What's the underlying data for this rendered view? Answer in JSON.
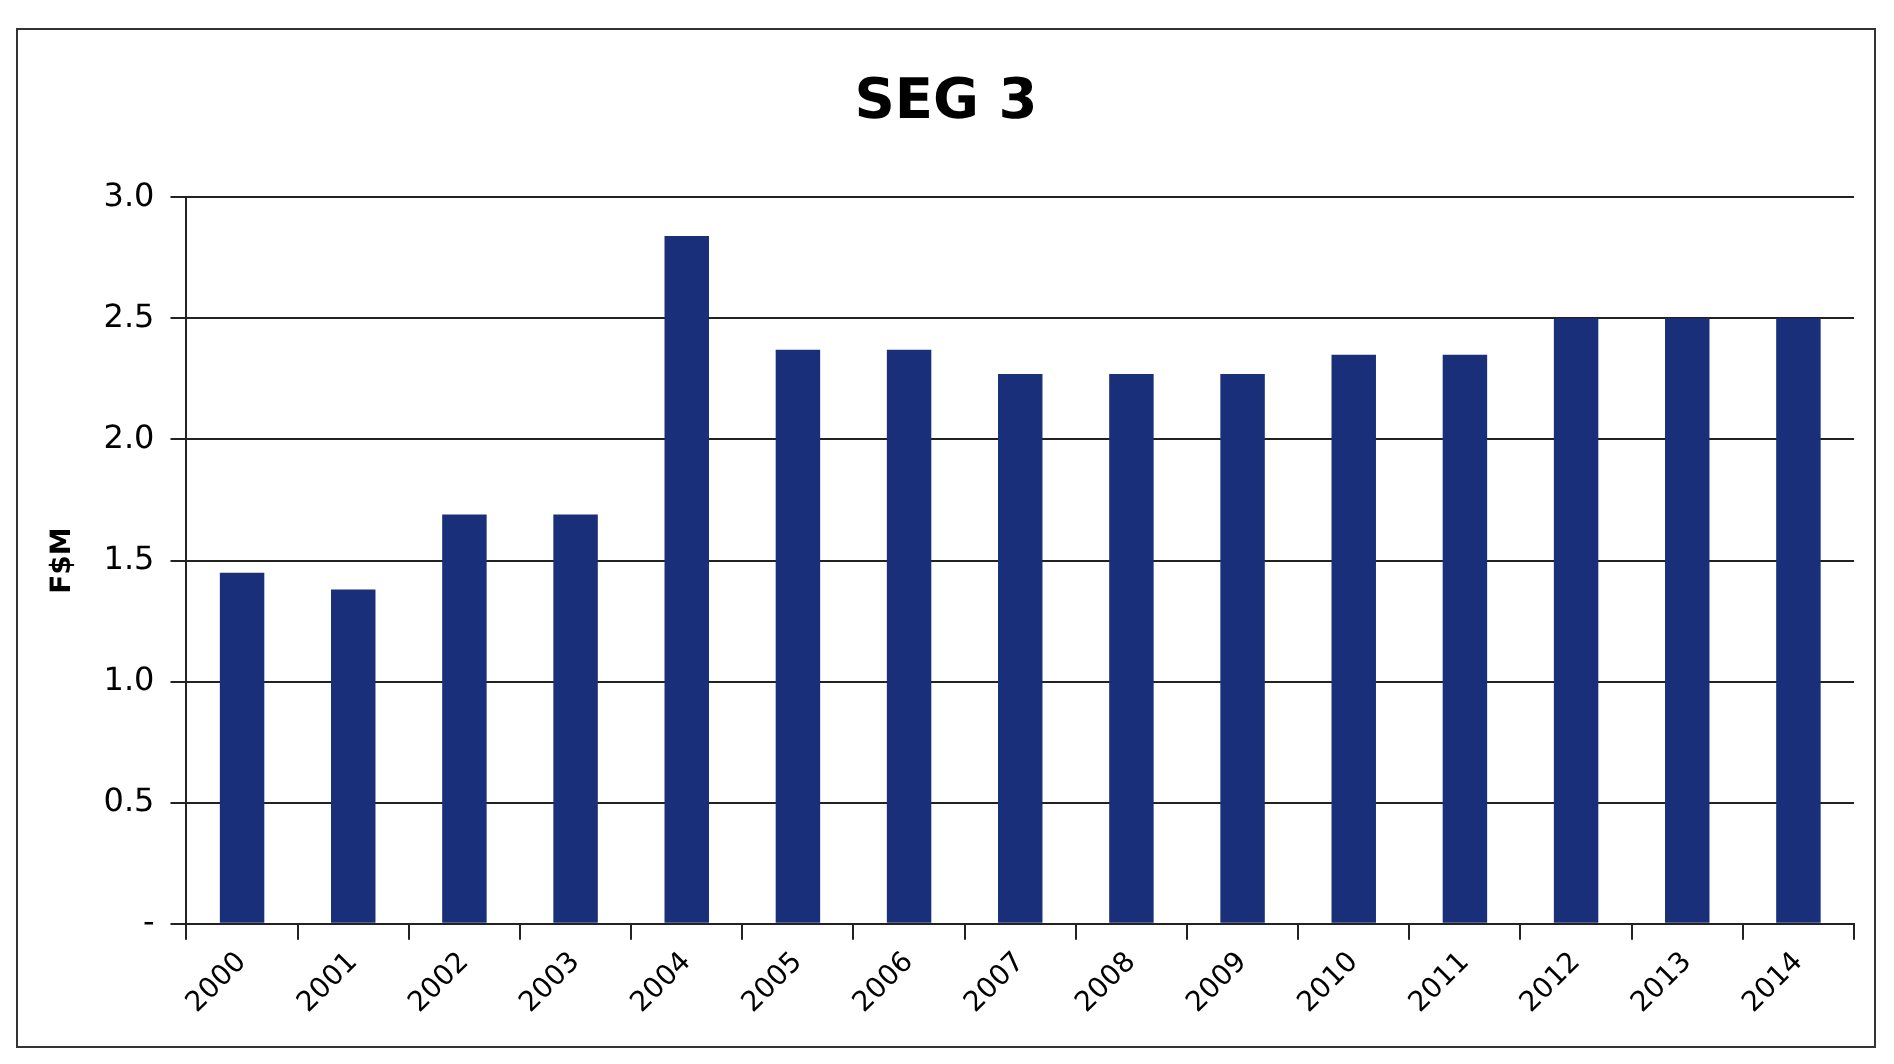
{
  "chart_data": {
    "type": "bar",
    "title": "SEG 3",
    "ylabel": "F$M",
    "categories": [
      "2000",
      "2001",
      "2002",
      "2003",
      "2004",
      "2005",
      "2006",
      "2007",
      "2008",
      "2009",
      "2010",
      "2011",
      "2012",
      "2013",
      "2014"
    ],
    "values": [
      1.45,
      1.38,
      1.69,
      1.69,
      2.84,
      2.37,
      2.37,
      2.27,
      2.27,
      2.27,
      2.35,
      2.35,
      2.5,
      2.5,
      2.5
    ],
    "color": "#1a2f7a",
    "ylim": [
      0,
      3
    ],
    "yticks": [
      {
        "value": 0,
        "label": "-"
      },
      {
        "value": 0.5,
        "label": "0.5"
      },
      {
        "value": 1,
        "label": "1.0"
      },
      {
        "value": 1.5,
        "label": "1.5"
      },
      {
        "value": 2,
        "label": "2.0"
      },
      {
        "value": 2.5,
        "label": "2.5"
      },
      {
        "value": 3,
        "label": "3.0"
      }
    ],
    "grid": "y",
    "legend": false
  }
}
